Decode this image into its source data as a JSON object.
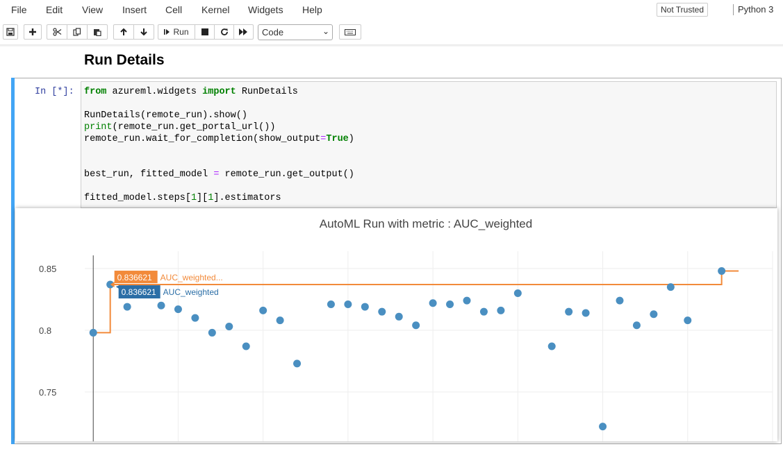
{
  "menubar": {
    "items": [
      "File",
      "Edit",
      "View",
      "Insert",
      "Cell",
      "Kernel",
      "Widgets",
      "Help"
    ],
    "trust": "Not Trusted",
    "kernel": "Python 3"
  },
  "toolbar": {
    "save_icon": "save-icon",
    "insert_icon": "plus-icon",
    "cut_icon": "scissors-icon",
    "copy_icon": "copy-icon",
    "paste_icon": "paste-icon",
    "up_icon": "arrow-up-icon",
    "down_icon": "arrow-down-icon",
    "run_label": "Run",
    "cell_type": "Code",
    "keyboard_icon": "keyboard-icon"
  },
  "notebook": {
    "heading": "Run Details",
    "prompt": "In [*]:",
    "cell_accent": "#42a5f5"
  },
  "chart_data": {
    "type": "scatter",
    "title": "AutoML Run with metric : AUC_weighted",
    "xlabel": "",
    "ylabel": "",
    "ylim": [
      0.71,
      0.864
    ],
    "yticks": [
      0.75,
      0.8,
      0.85
    ],
    "ytick_labels": [
      "0.75",
      "0.8",
      "0.85"
    ],
    "xlim": [
      -0.5,
      40
    ],
    "grid": true,
    "series": [
      {
        "name": "AUC_weighted",
        "color": "#4a8fc1",
        "x": [
          0,
          1,
          2,
          4,
          5,
          6,
          7,
          8,
          9,
          10,
          11,
          12,
          14,
          15,
          16,
          17,
          18,
          19,
          20,
          21,
          22,
          23,
          24,
          25,
          27,
          28,
          29,
          30,
          31,
          32,
          33,
          34,
          35,
          37
        ],
        "values": [
          0.798,
          0.837,
          0.819,
          0.82,
          0.817,
          0.81,
          0.798,
          0.803,
          0.787,
          0.816,
          0.808,
          0.773,
          0.821,
          0.821,
          0.819,
          0.815,
          0.811,
          0.804,
          0.822,
          0.821,
          0.824,
          0.815,
          0.816,
          0.83,
          0.787,
          0.815,
          0.814,
          0.722,
          0.824,
          0.804,
          0.813,
          0.835,
          0.808,
          0.848
        ]
      },
      {
        "name": "AUC_weighted_max",
        "color": "#f28a3a",
        "line_shape": "step",
        "x": [
          0,
          1,
          37,
          38
        ],
        "values": [
          0.798,
          0.837,
          0.848,
          0.848
        ]
      }
    ],
    "hover": {
      "x": 1,
      "orange_value": "0.836621",
      "orange_label": "AUC_weighted...",
      "blue_value": "0.836621",
      "blue_label": "AUC_weighted"
    }
  }
}
